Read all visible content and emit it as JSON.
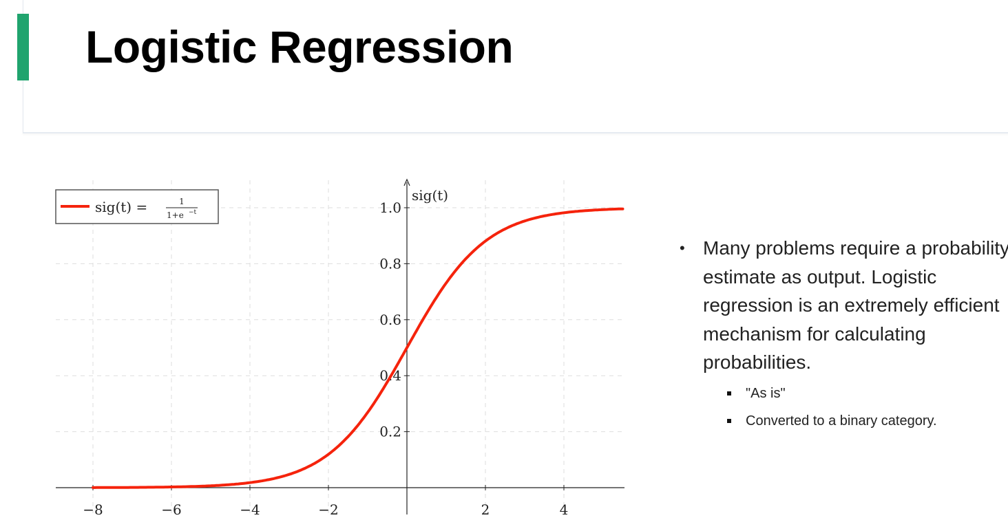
{
  "slide": {
    "title": "Logistic Regression",
    "accent_color": "#20a46e",
    "bullets": [
      {
        "text": "Many problems require a probability estimate as output. Logistic regression is an extremely efficient mechanism for calculating probabilities.",
        "sub_bullets": [
          "\"As is\"",
          "Converted to a binary category."
        ]
      }
    ]
  },
  "chart_data": {
    "type": "line",
    "function": "sig(t) = 1/(1+e^-t)",
    "ylabel": "sig(t)",
    "xlabel": "",
    "legend": {
      "label": "sig(t) = ",
      "numerator": "1",
      "denominator": "1+e",
      "exponent": "−t",
      "placement": "top-left"
    },
    "xlim": [
      -9,
      5.5
    ],
    "ylim": [
      0,
      1.1
    ],
    "x_ticks": [
      -8,
      -6,
      -4,
      -2,
      2,
      4
    ],
    "x_tick_labels": [
      "−8",
      "−6",
      "−4",
      "−2",
      "2",
      "4"
    ],
    "y_ticks": [
      0.2,
      0.4,
      0.6,
      0.8,
      1.0
    ],
    "y_tick_labels": [
      "0.2",
      "0.4",
      "0.6",
      "0.8",
      "1.0"
    ],
    "grid": true,
    "series": [
      {
        "name": "sig(t)",
        "color": "#f5230c",
        "x_range": [
          -8,
          5.5
        ]
      }
    ]
  }
}
